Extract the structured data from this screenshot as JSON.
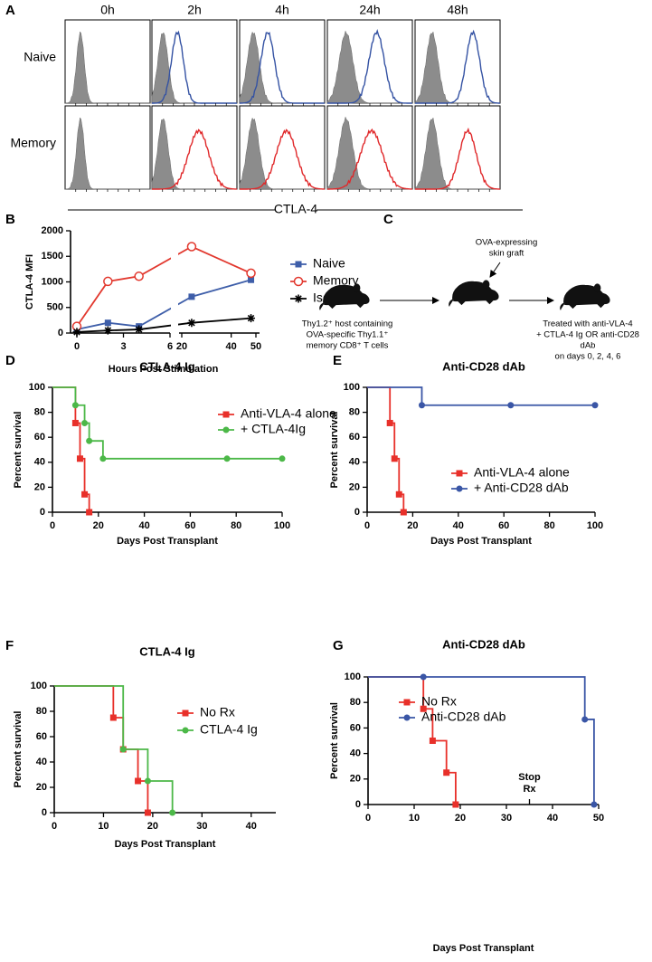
{
  "panel_labels": [
    "A",
    "B",
    "C",
    "D",
    "E",
    "F",
    "G"
  ],
  "panel_a": {
    "columns": [
      "0h",
      "2h",
      "4h",
      "24h",
      "48h"
    ],
    "rows": [
      "Naive",
      "Memory"
    ],
    "x_label": "CTLA-4"
  },
  "panel_c": {
    "graft": [
      "OVA-expressing",
      "skin graft"
    ],
    "host": [
      "Thy1.2⁺ host containing",
      "OVA-specific Thy1.1⁺",
      "memory CD8⁺ T cells"
    ],
    "treatment": [
      "Treated with anti-VLA-4",
      "+ CTLA-4 Ig OR anti-CD28",
      "dAb",
      "on days 0, 2, 4, 6"
    ]
  },
  "chart_data": [
    {
      "type": "line",
      "y_label": "CTLA-4 MFI",
      "x_label": "Hours Post Stimulation",
      "x": [
        0,
        2,
        4,
        24,
        48
      ],
      "xlim": [
        0,
        50
      ],
      "xbreak": [
        6,
        20
      ],
      "xticks": [
        0,
        3,
        6,
        20,
        40,
        50
      ],
      "ylim": [
        0,
        2000
      ],
      "yticks": [
        0,
        500,
        1000,
        1500,
        2000
      ],
      "legend": "upper right",
      "series": [
        {
          "name": "Naive",
          "color": "#3e5ea9",
          "marker": "square",
          "values": [
            70,
            200,
            130,
            710,
            1040
          ]
        },
        {
          "name": "Memory",
          "color": "#e2382e",
          "marker": "open-circle",
          "values": [
            130,
            1010,
            1110,
            1690,
            1170
          ]
        },
        {
          "name": "Isotype",
          "color": "#000000",
          "marker": "star",
          "values": [
            20,
            50,
            70,
            200,
            290
          ]
        }
      ]
    },
    {
      "type": "survival",
      "title": "CTLA-4 Ig",
      "x_label": "Days Post Transplant",
      "y_label": "Percent survival",
      "xlim": [
        0,
        100
      ],
      "xticks": [
        0,
        20,
        40,
        60,
        80,
        100
      ],
      "ylim": [
        0,
        100
      ],
      "yticks": [
        0,
        20,
        40,
        60,
        80,
        100
      ],
      "legend": "upper right",
      "series": [
        {
          "name": "Anti-VLA-4 alone",
          "color": "#e8302a",
          "marker": "square",
          "x": [
            0,
            10,
            12,
            14,
            16
          ],
          "values": [
            100,
            71.4,
            42.9,
            14.3,
            0
          ]
        },
        {
          "name": "+ CTLA-4Ig",
          "color": "#4cb848",
          "marker": "circle",
          "x": [
            0,
            10,
            14,
            16,
            22,
            76,
            100
          ],
          "values": [
            100,
            85.7,
            71.4,
            57.1,
            42.9,
            42.9,
            42.9
          ]
        }
      ]
    },
    {
      "type": "survival",
      "title": "Anti-CD28 dAb",
      "x_label": "Days Post Transplant",
      "y_label": "Percent survival",
      "xlim": [
        0,
        100
      ],
      "xticks": [
        0,
        20,
        40,
        60,
        80,
        100
      ],
      "ylim": [
        0,
        100
      ],
      "yticks": [
        0,
        20,
        40,
        60,
        80,
        100
      ],
      "legend": "lower right",
      "series": [
        {
          "name": "Anti-VLA-4 alone",
          "color": "#e8302a",
          "marker": "square",
          "x": [
            0,
            10,
            12,
            14,
            16
          ],
          "values": [
            100,
            71.4,
            42.9,
            14.3,
            0
          ]
        },
        {
          "name": "+ Anti-CD28 dAb",
          "color": "#3a56a6",
          "marker": "circle",
          "x": [
            0,
            24,
            63,
            100
          ],
          "values": [
            100,
            85.7,
            85.7,
            85.7
          ]
        }
      ]
    },
    {
      "type": "survival",
      "title": "CTLA-4 Ig",
      "x_label": "Days Post Transplant",
      "y_label": "Percent survival",
      "xlim": [
        0,
        45
      ],
      "xticks": [
        0,
        10,
        20,
        30,
        40
      ],
      "ylim": [
        0,
        100
      ],
      "yticks": [
        0,
        20,
        40,
        60,
        80,
        100
      ],
      "legend": "upper right",
      "series": [
        {
          "name": "No Rx",
          "color": "#e8302a",
          "marker": "square",
          "x": [
            0,
            12,
            14,
            17,
            19
          ],
          "values": [
            100,
            75,
            50,
            25,
            0
          ]
        },
        {
          "name": "CTLA-4 Ig",
          "color": "#4cb848",
          "marker": "circle",
          "x": [
            0,
            14,
            19,
            24
          ],
          "values": [
            100,
            50,
            25,
            0
          ]
        }
      ]
    },
    {
      "type": "survival",
      "title": "Anti-CD28 dAb",
      "x_label": "Days Post Transplant",
      "y_label": "Percent survival",
      "xlim": [
        0,
        50
      ],
      "xticks": [
        0,
        10,
        20,
        30,
        40,
        50
      ],
      "ylim": [
        0,
        100
      ],
      "yticks": [
        0,
        20,
        40,
        60,
        80,
        100
      ],
      "legend": "upper left",
      "annotation": {
        "text": [
          "Stop",
          "Rx"
        ],
        "x": 35
      },
      "series": [
        {
          "name": "No Rx",
          "color": "#e8302a",
          "marker": "square",
          "x": [
            0,
            12,
            14,
            17,
            19
          ],
          "values": [
            100,
            75,
            50,
            25,
            0
          ]
        },
        {
          "name": "Anti-CD28 dAb",
          "color": "#3a56a6",
          "marker": "circle",
          "x": [
            0,
            12,
            47,
            49
          ],
          "values": [
            100,
            100,
            66.7,
            0
          ]
        }
      ]
    }
  ]
}
